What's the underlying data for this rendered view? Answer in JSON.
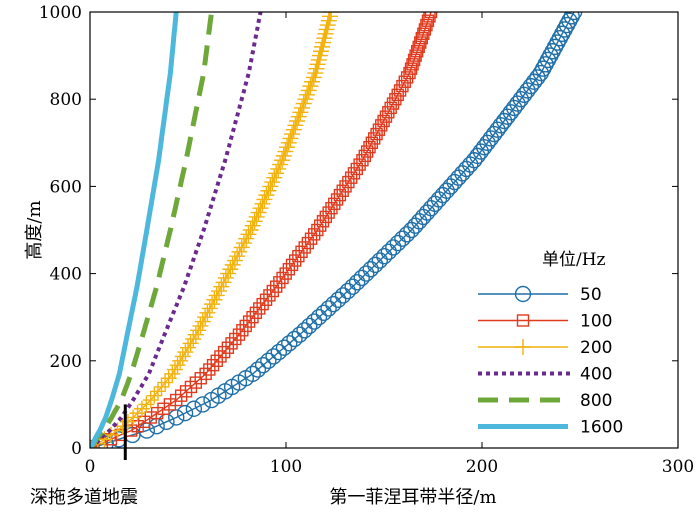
{
  "chart_data": {
    "type": "line",
    "title": "",
    "xlabel": "第一菲涅耳带半径/m",
    "ylabel": "高度/m",
    "xlim": [
      0,
      300
    ],
    "ylim": [
      0,
      1000
    ],
    "xticks": [
      0,
      100,
      200,
      300
    ],
    "yticks": [
      0,
      200,
      400,
      600,
      800,
      1000
    ],
    "grid": false,
    "legend_title": "单位/Hz",
    "legend_position": "lower-right",
    "annotation": {
      "text": "深拖多道地震",
      "x": 18,
      "y_top": 100
    },
    "series": [
      {
        "name": "50",
        "marker": "circle",
        "color": "#1f6fa8",
        "x": [
          0,
          2,
          8,
          18,
          29,
          44,
          62,
          83,
          107,
          134,
          164,
          196,
          230,
          247
        ],
        "y": [
          0,
          2,
          10,
          25,
          40,
          70,
          110,
          170,
          260,
          370,
          500,
          660,
          860,
          1000
        ]
      },
      {
        "name": "100",
        "marker": "square",
        "color": "#e03a1e",
        "x": [
          0,
          2,
          6,
          13,
          21,
          31,
          44,
          59,
          76,
          95,
          116,
          139,
          163,
          174
        ],
        "y": [
          0,
          2,
          10,
          25,
          40,
          70,
          110,
          170,
          260,
          370,
          500,
          660,
          860,
          1000
        ]
      },
      {
        "name": "200",
        "marker": "plus",
        "color": "#f2b20f",
        "x": [
          0,
          1,
          4,
          9,
          14,
          22,
          31,
          42,
          54,
          67,
          82,
          98,
          115,
          123
        ],
        "y": [
          0,
          2,
          10,
          25,
          40,
          70,
          110,
          170,
          260,
          370,
          500,
          660,
          860,
          1000
        ]
      },
      {
        "name": "400",
        "marker": "dotted",
        "color": "#6a2a8f",
        "x": [
          0,
          1,
          3,
          6,
          10,
          16,
          22,
          30,
          38,
          48,
          58,
          69,
          81,
          87
        ],
        "y": [
          0,
          2,
          10,
          25,
          40,
          70,
          110,
          170,
          260,
          370,
          500,
          660,
          860,
          1000
        ]
      },
      {
        "name": "800",
        "marker": "dashed",
        "color": "#6fa83a",
        "x": [
          0,
          0.5,
          2,
          4,
          7,
          11,
          16,
          21,
          27,
          34,
          41,
          49,
          58,
          62
        ],
        "y": [
          0,
          2,
          10,
          25,
          40,
          70,
          110,
          170,
          260,
          370,
          500,
          660,
          860,
          1000
        ]
      },
      {
        "name": "1600",
        "marker": "solid",
        "color": "#4db8dc",
        "x": [
          0,
          0.4,
          1.5,
          3,
          5,
          8,
          11,
          15,
          19,
          24,
          29,
          35,
          41,
          44
        ],
        "y": [
          0,
          2,
          10,
          25,
          40,
          70,
          110,
          170,
          260,
          370,
          500,
          660,
          860,
          1000
        ]
      }
    ]
  }
}
